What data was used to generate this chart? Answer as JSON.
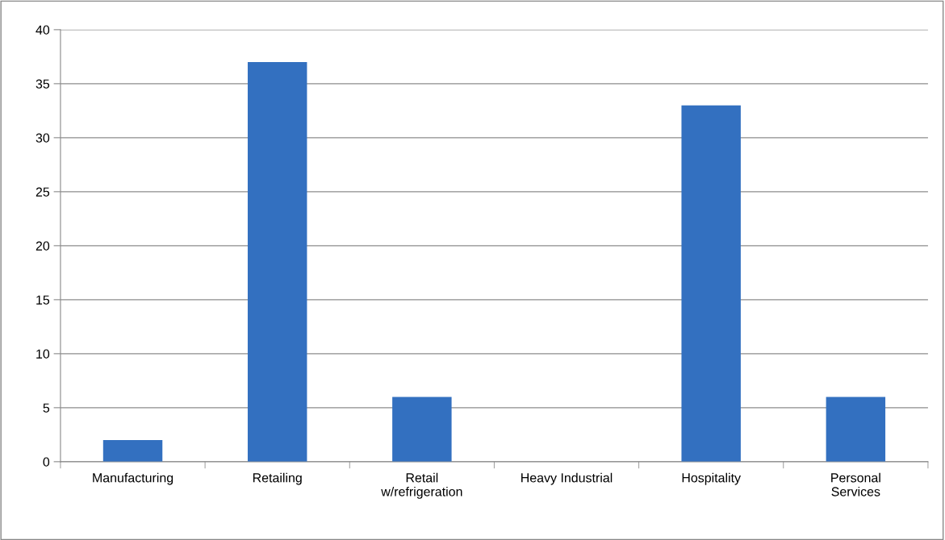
{
  "chart_data": {
    "type": "bar",
    "categories": [
      "Manufacturing",
      "Retailing",
      "Retail\nw/refrigeration",
      "Heavy Industrial",
      "Hospitality",
      "Personal\nServices"
    ],
    "values": [
      2,
      37,
      6,
      0,
      33,
      6
    ],
    "color": "#3370c0",
    "ylim": [
      0,
      40
    ],
    "yticks": [
      0,
      5,
      10,
      15,
      20,
      25,
      30,
      35,
      40
    ],
    "grid": "y",
    "legend": false
  }
}
